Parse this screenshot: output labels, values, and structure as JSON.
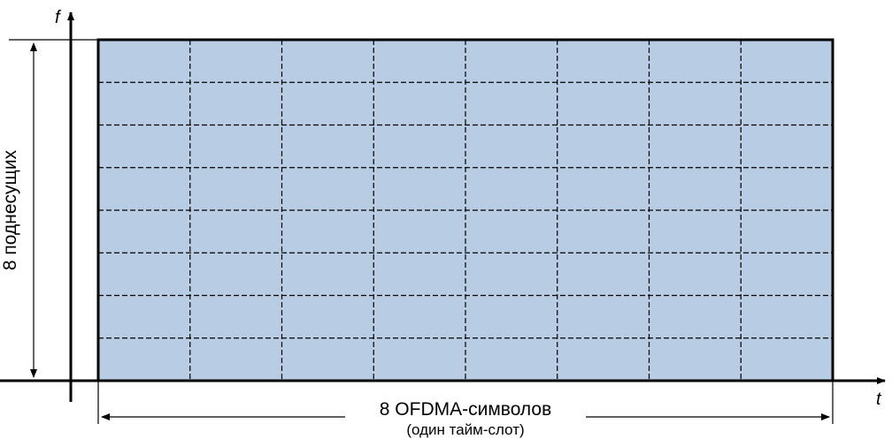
{
  "axes": {
    "y_label": "f",
    "x_label": "t"
  },
  "grid": {
    "columns": 8,
    "rows": 8,
    "fill_color": "#b8cce4",
    "line_color": "#000000"
  },
  "dimensions": {
    "vertical_label": "8 поднесущих",
    "horizontal_label": "8 OFDMA-символов",
    "horizontal_sublabel": "(один тайм-слот)"
  }
}
